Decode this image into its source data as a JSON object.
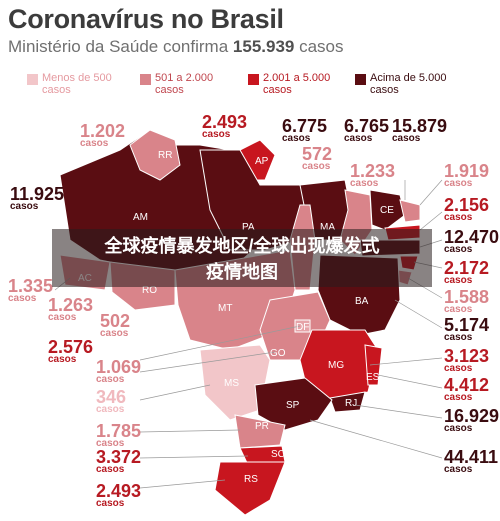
{
  "title": "Coronavírus no Brasil",
  "subtitle_prefix": "Ministério da Saúde confirma",
  "subtitle_value": "155.939",
  "subtitle_suffix": "casos",
  "legend": [
    {
      "label": "Menos de 500 casos",
      "color": "#f2c6c9"
    },
    {
      "label": "501 a 2.000 casos",
      "color": "#d9848a"
    },
    {
      "label": "2.001 a 5.000 casos",
      "color": "#c8161f"
    },
    {
      "label": "Acima de 5.000 casos",
      "color": "#5a0d12"
    }
  ],
  "cases_word": "casos",
  "states": {
    "RR": {
      "label": "RR",
      "cases": "1.202"
    },
    "AP": {
      "label": "AP",
      "cases": "2.493"
    },
    "PA": {
      "label": "PA",
      "cases": "6.775"
    },
    "MA": {
      "label": "MA",
      "cases": "6.765"
    },
    "CE": {
      "label": "CE",
      "cases": "15.879"
    },
    "AM": {
      "label": "AM",
      "cases": "11.925"
    },
    "TO": {
      "label": "TO",
      "cases": "572"
    },
    "PI": {
      "label": "PI",
      "cases": "1.233"
    },
    "RN": {
      "label": "RN",
      "cases": "1.919"
    },
    "PB": {
      "label": "PB",
      "cases": "2.156"
    },
    "PE": {
      "label": "PE",
      "cases": "12.470"
    },
    "AL": {
      "label": "AL",
      "cases": "2.172"
    },
    "SE": {
      "label": "SE",
      "cases": "1.588"
    },
    "BA": {
      "label": "BA",
      "cases": "5.174"
    },
    "AC": {
      "label": "AC",
      "cases": "1.335"
    },
    "RO": {
      "label": "RO",
      "cases": "1.263"
    },
    "MT": {
      "label": "MT",
      "cases": "502"
    },
    "DF": {
      "label": "DF",
      "cases": "2.576"
    },
    "GO": {
      "label": "GO",
      "cases": "1.069"
    },
    "MS": {
      "label": "MS",
      "cases": "346"
    },
    "MG": {
      "label": "MG",
      "cases": "3.123"
    },
    "ES": {
      "label": "ES",
      "cases": "4.412"
    },
    "RJ": {
      "label": "RJ",
      "cases": "16.929"
    },
    "SP": {
      "label": "SP",
      "cases": "44.411"
    },
    "PR": {
      "label": "PR",
      "cases": "1.785"
    },
    "SC": {
      "label": "SC",
      "cases": "3.372"
    },
    "RS": {
      "label": "RS",
      "cases": "2.493"
    }
  },
  "banner_line1": "全球疫情暴发地区/全球出现爆发式",
  "banner_line2": "疫情地图"
}
